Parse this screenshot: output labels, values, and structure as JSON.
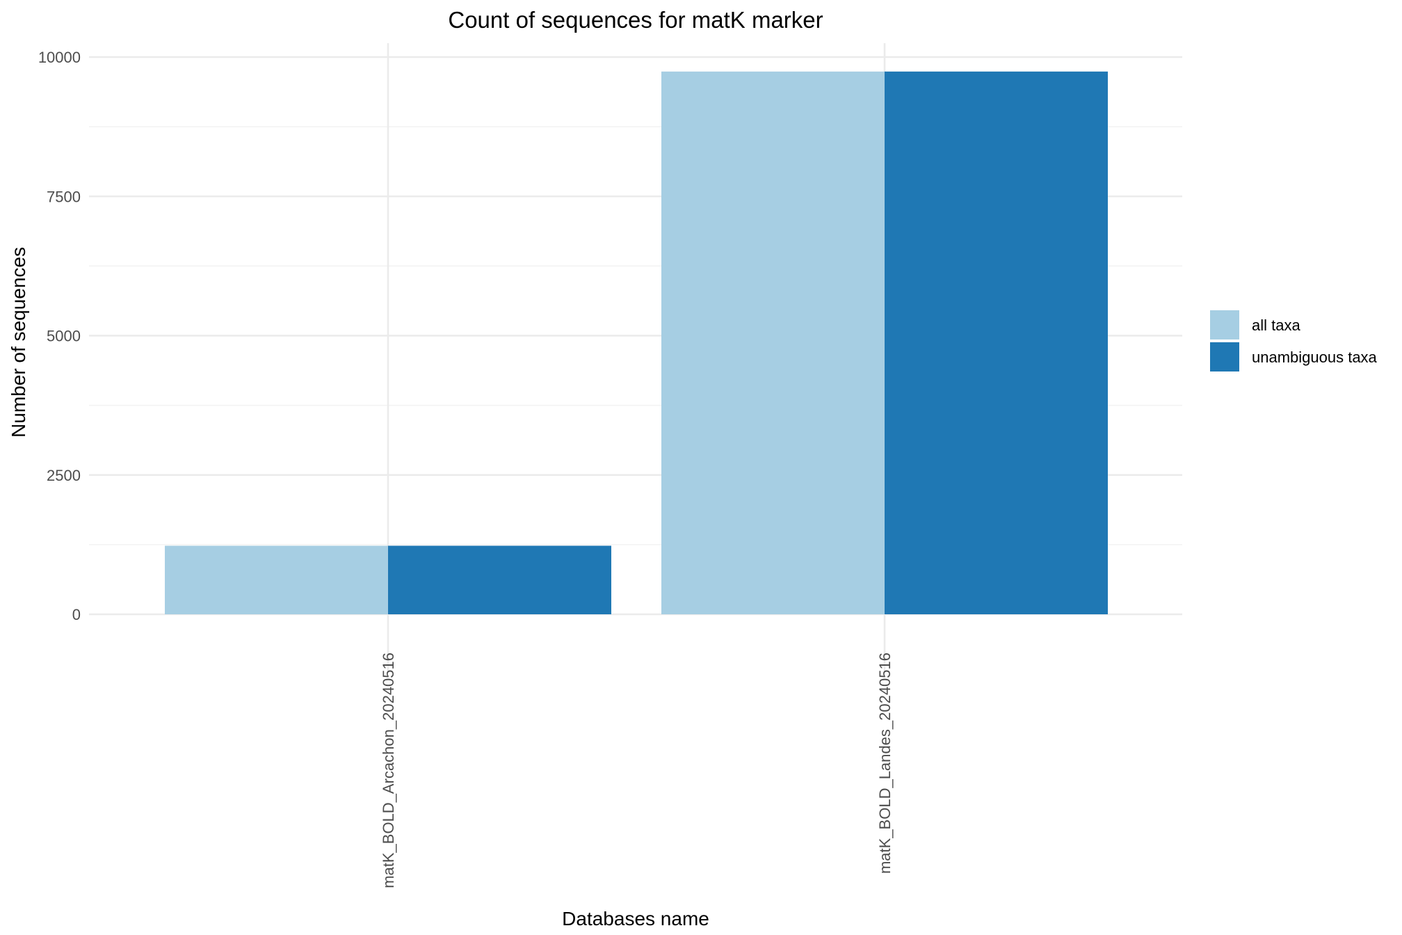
{
  "chart_data": {
    "type": "bar",
    "title": "Count of sequences for matK marker",
    "xlabel": "Databases name",
    "ylabel": "Number of sequences",
    "categories": [
      "matK_BOLD_Arcachon_20240516",
      "matK_BOLD_Landes_20240516"
    ],
    "series": [
      {
        "name": "all taxa",
        "values": [
          1230,
          9740
        ],
        "color": "#a6cee3"
      },
      {
        "name": "unambiguous taxa",
        "values": [
          1230,
          9740
        ],
        "color": "#1f78b4"
      }
    ],
    "ylim": [
      0,
      10000
    ],
    "yticks": [
      0,
      2500,
      5000,
      7500,
      10000
    ],
    "ytick_labels": [
      "0",
      "2500",
      "5000",
      "7500",
      "10000"
    ],
    "grid": true,
    "legend_position": "right",
    "bar_layout": "grouped"
  }
}
